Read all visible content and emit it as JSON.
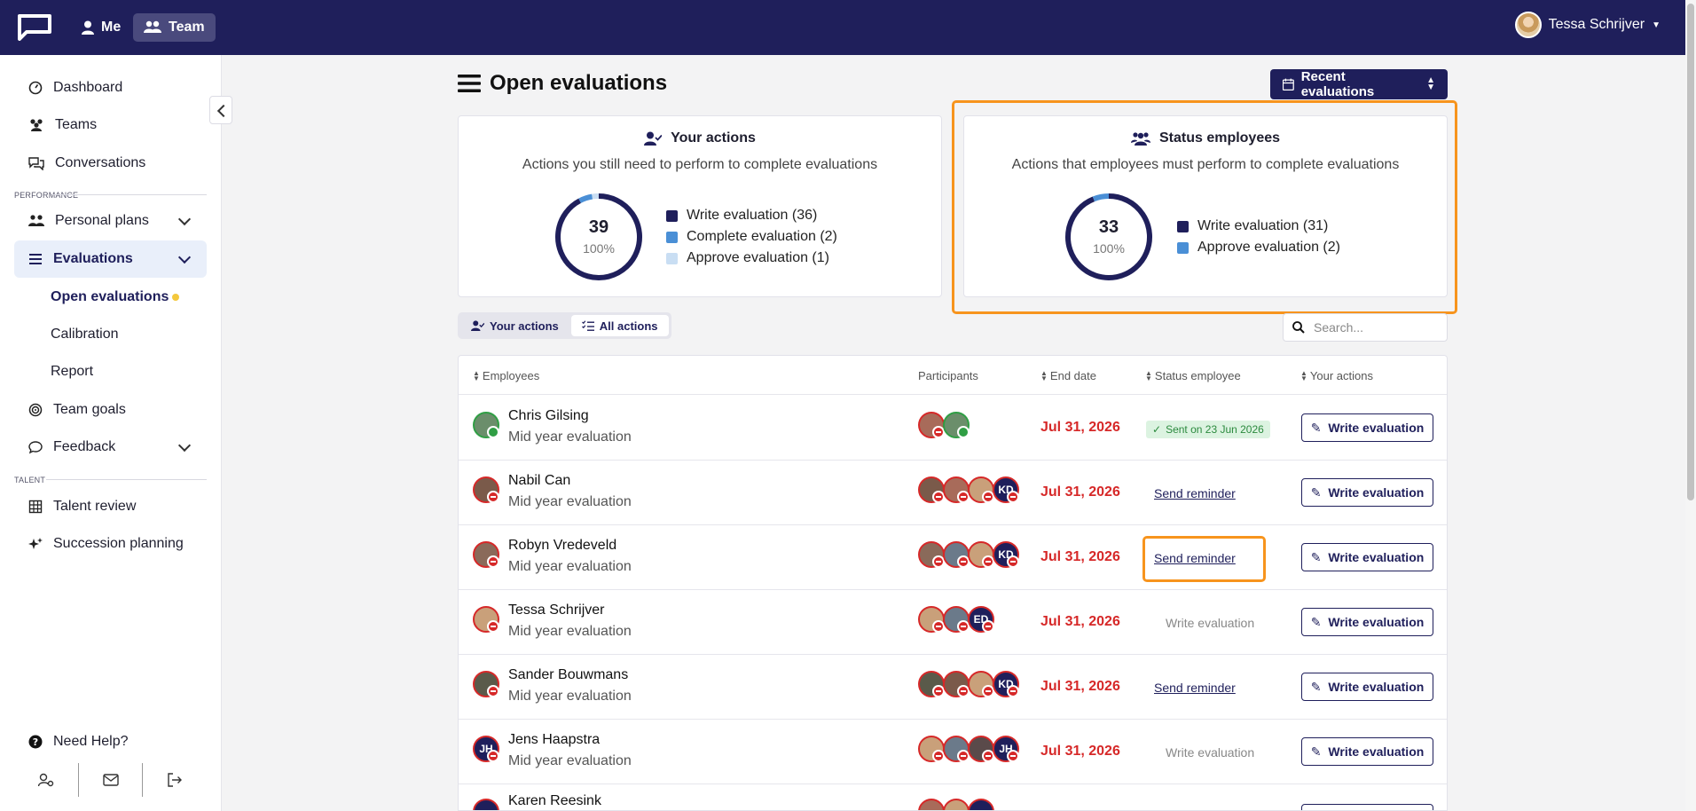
{
  "topbar": {
    "me_label": "Me",
    "team_label": "Team",
    "user_name": "Tessa Schrijver"
  },
  "sidebar": {
    "items": [
      {
        "label": "Dashboard"
      },
      {
        "label": "Teams"
      },
      {
        "label": "Conversations"
      }
    ],
    "performance_label": "PERFORMANCE",
    "personal_plans": "Personal plans",
    "evaluations": "Evaluations",
    "sub_items": [
      "Open evaluations",
      "Calibration",
      "Report"
    ],
    "team_goals": "Team goals",
    "feedback": "Feedback",
    "talent_label": "TALENT",
    "talent_review": "Talent review",
    "succession": "Succession planning",
    "need_help": "Need Help?"
  },
  "page": {
    "title": "Open evaluations",
    "recent_button": "Recent evaluations"
  },
  "your_actions": {
    "title": "Your actions",
    "subtitle": "Actions you still need to perform to complete evaluations",
    "total": "39",
    "percent": "100%",
    "legend": [
      "Write evaluation (36)",
      "Complete evaluation (2)",
      "Approve evaluation (1)"
    ],
    "values": [
      36,
      2,
      1
    ],
    "colors": [
      "#1f1f5b",
      "#4a8fd6",
      "#c9def3"
    ]
  },
  "status_employees": {
    "title": "Status employees",
    "subtitle": "Actions that employees must perform to complete evaluations",
    "total": "33",
    "percent": "100%",
    "legend": [
      "Write evaluation (31)",
      "Approve evaluation (2)"
    ],
    "values": [
      31,
      2
    ],
    "colors": [
      "#1f1f5b",
      "#4a8fd6"
    ]
  },
  "tabs": [
    "Your actions",
    "All actions"
  ],
  "search": {
    "placeholder": "Search..."
  },
  "table": {
    "headers": [
      "Employees",
      "Participants",
      "End date",
      "Status employee",
      "Your actions"
    ],
    "rows": [
      {
        "name": "Chris Gilsing",
        "type": "Mid year evaluation",
        "end": "Jul 31, 2026",
        "status_kind": "sent",
        "status": "Sent on 23 Jun 2026",
        "action": "Write evaluation"
      },
      {
        "name": "Nabil Can",
        "type": "Mid year evaluation",
        "end": "Jul 31, 2026",
        "status_kind": "link",
        "status": "Send reminder",
        "action": "Write evaluation"
      },
      {
        "name": "Robyn Vredeveld",
        "type": "Mid year evaluation",
        "end": "Jul 31, 2026",
        "status_kind": "link",
        "status": "Send reminder",
        "action": "Write evaluation"
      },
      {
        "name": "Tessa Schrijver",
        "type": "Mid year evaluation",
        "end": "Jul 31, 2026",
        "status_kind": "text",
        "status": "Write evaluation",
        "action": "Write evaluation"
      },
      {
        "name": "Sander Bouwmans",
        "type": "Mid year evaluation",
        "end": "Jul 31, 2026",
        "status_kind": "link",
        "status": "Send reminder",
        "action": "Write evaluation"
      },
      {
        "name": "Jens Haapstra",
        "type": "Mid year evaluation",
        "end": "Jul 31, 2026",
        "status_kind": "text",
        "status": "Write evaluation",
        "action": "Write evaluation"
      },
      {
        "name": "Karen Reesink",
        "type": "",
        "end": "",
        "status_kind": "none",
        "status": "",
        "action": ""
      }
    ],
    "initials": {
      "kd": "KD",
      "ed": "ED",
      "jh": "JH"
    }
  }
}
